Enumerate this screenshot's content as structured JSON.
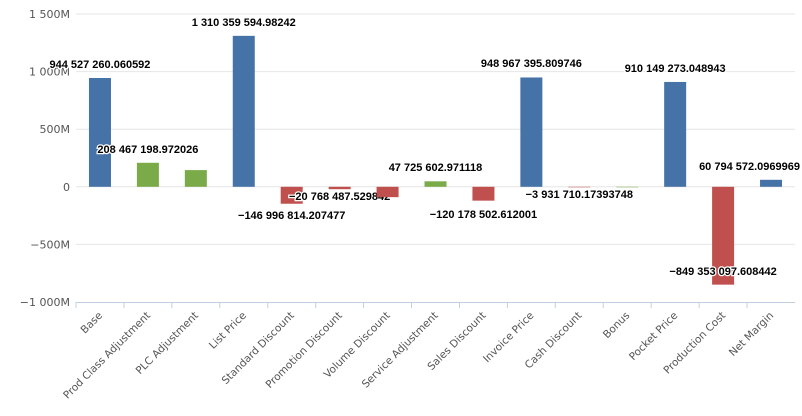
{
  "chart_data": {
    "type": "bar",
    "title": "",
    "xlabel": "",
    "ylabel": "",
    "ylim": [
      -1000000000,
      1500000000
    ],
    "yticks": [
      {
        "value": 1500000000,
        "label": "1 500M"
      },
      {
        "value": 1000000000,
        "label": "1 000M"
      },
      {
        "value": 500000000,
        "label": "500M"
      },
      {
        "value": 0,
        "label": "0"
      },
      {
        "value": -500000000,
        "label": "−500M"
      },
      {
        "value": -1000000000,
        "label": "−1 000M"
      }
    ],
    "grid": true,
    "colors": {
      "total": "#4572a7",
      "increase": "#7aab48",
      "decrease": "#c0504d"
    },
    "categories": [
      "Base",
      "Prod Class Adjustment",
      "PLC Adjustment",
      "List Price",
      "Standard Discount",
      "Promotion Discount",
      "Volume Discount",
      "Service Adjustment",
      "Sales Discount",
      "Invoice Price",
      "Cash Discount",
      "Bonus",
      "Pocket Price",
      "Production Cost",
      "Net Margin"
    ],
    "values": [
      944527260.060592,
      208467198.972026,
      145000000,
      1310359594.98242,
      -146996814.207477,
      -20768487.529842,
      -90000000,
      47725602.971118,
      -120178502.612001,
      948967395.809746,
      -3931710.17393748,
      0,
      910149273.048943,
      -849353097.608442,
      60794572.0969969
    ],
    "kinds": [
      "total",
      "increase",
      "increase",
      "total",
      "decrease",
      "decrease",
      "decrease",
      "increase",
      "decrease",
      "total",
      "decrease",
      "increase",
      "total",
      "decrease",
      "total"
    ],
    "data_labels": [
      "944 527 260.060592",
      "208 467 198.972026",
      null,
      "1 310 359 594.98242",
      "−146 996 814.207477",
      "−20 768 487.529842",
      null,
      "47 725 602.971118",
      "−120 178 502.612001",
      "948 967 395.809746",
      "−3 931 710.17393748",
      null,
      "910 149 273.048943",
      "−849 353 097.608442",
      "60 794 572.0969969"
    ]
  }
}
